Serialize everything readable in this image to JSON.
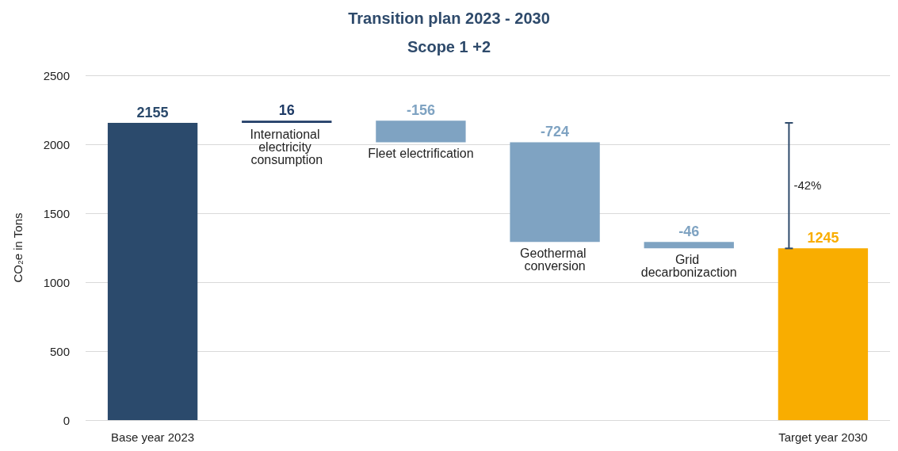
{
  "chart_data": {
    "type": "bar",
    "title": "Transition plan 2023 - 2030",
    "subtitle": "Scope 1 +2",
    "ylabel": "CO₂e in Tons",
    "categories": [
      "Base year 2023",
      "International electricity consumption",
      "Fleet electrification",
      "Geothermal conversion",
      "Grid decarbonizaction",
      "Target year 2030"
    ],
    "values": [
      2155,
      16,
      -156,
      -724,
      -46,
      1245
    ],
    "base": [
      0,
      2155,
      2171,
      2015,
      1291,
      0
    ],
    "colors": [
      "#2b4a6c",
      "#1f3b66",
      "#7fa3c2",
      "#7fa3c2",
      "#7fa3c2",
      "#f9ad00"
    ],
    "data_labels": true,
    "ylim": [
      0,
      2500
    ],
    "yticks": [
      0,
      500,
      1000,
      1500,
      2000,
      2500
    ],
    "grid": "y",
    "annotations": [
      "-42%"
    ]
  }
}
